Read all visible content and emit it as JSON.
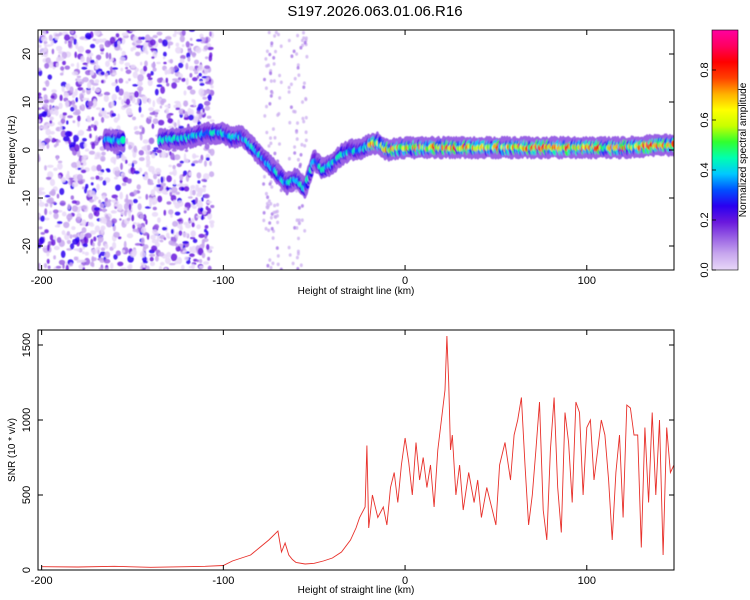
{
  "title": "S197.2026.063.01.06.R16",
  "chart_data": [
    {
      "type": "heatmap",
      "xlabel": "Height of straight line (km)",
      "ylabel": "Frequency (Hz)",
      "xlim": [
        -202,
        148
      ],
      "ylim": [
        -25,
        25
      ],
      "xticks": [
        -200,
        -100,
        0,
        100
      ],
      "yticks": [
        -20,
        -10,
        0,
        10,
        20
      ],
      "colorbar": {
        "label": "Normalized spectral amplitude",
        "range": [
          0,
          0.96
        ],
        "ticks": [
          "0.0",
          "0.2",
          "0.4",
          "0.6",
          "0.8"
        ],
        "colors": [
          "#e8d8f8",
          "#c8a8ee",
          "#9a62e4",
          "#6a18dd",
          "#2a00f0",
          "#0050ff",
          "#00c8ff",
          "#00ffb0",
          "#30ff30",
          "#c8ff00",
          "#ffff00",
          "#ffb000",
          "#ff4000",
          "#ff0000",
          "#ff0060",
          "#ff00a0"
        ]
      },
      "ridge": {
        "x": [
          -200,
          -170,
          -160,
          -150,
          -140,
          -120,
          -110,
          -100,
          -95,
          -90,
          -85,
          -80,
          -75,
          -70,
          -65,
          -60,
          -55,
          -50,
          -45,
          -40,
          -35,
          -30,
          -25,
          -20,
          -15,
          -10,
          0,
          10,
          20,
          30,
          50,
          70,
          100,
          120,
          140,
          148
        ],
        "freq": [
          2,
          2,
          2,
          2,
          2,
          2.5,
          3.5,
          3.5,
          2.5,
          3,
          1,
          -1,
          -3,
          -5,
          -7,
          -6,
          -8,
          -2,
          -4,
          -3,
          -1,
          0,
          0,
          1,
          1.5,
          0,
          0.5,
          0.5,
          0.5,
          0.5,
          0.5,
          0.5,
          0.5,
          0.5,
          1,
          1
        ]
      }
    },
    {
      "type": "line",
      "xlabel": "Height of straight line (km)",
      "ylabel": "SNR (10 * v/v)",
      "xlim": [
        -202,
        148
      ],
      "ylim": [
        0,
        1600
      ],
      "xticks": [
        -200,
        -100,
        0,
        100
      ],
      "yticks": [
        0,
        500,
        1000,
        1500
      ],
      "color": "#e8302a",
      "series": [
        {
          "name": "SNR",
          "x": [
            -200,
            -180,
            -160,
            -140,
            -120,
            -110,
            -100,
            -95,
            -90,
            -85,
            -80,
            -75,
            -70,
            -68,
            -66,
            -64,
            -62,
            -60,
            -55,
            -50,
            -45,
            -40,
            -35,
            -30,
            -27,
            -25,
            -22,
            -21,
            -20,
            -18,
            -15,
            -12,
            -10,
            -8,
            -6,
            -4,
            -2,
            0,
            2,
            4,
            6,
            8,
            10,
            12,
            14,
            16,
            18,
            20,
            22,
            23,
            24,
            25,
            26,
            28,
            30,
            32,
            35,
            38,
            40,
            42,
            45,
            48,
            50,
            52,
            55,
            58,
            60,
            62,
            64,
            66,
            68,
            70,
            72,
            74,
            76,
            78,
            80,
            82,
            84,
            86,
            88,
            90,
            92,
            94,
            96,
            98,
            100,
            102,
            104,
            106,
            108,
            110,
            112,
            114,
            116,
            118,
            120,
            122,
            124,
            126,
            128,
            130,
            132,
            134,
            136,
            138,
            140,
            142,
            144,
            146,
            148
          ],
          "values": [
            22,
            20,
            25,
            18,
            22,
            25,
            30,
            60,
            80,
            100,
            150,
            200,
            260,
            120,
            180,
            100,
            70,
            50,
            40,
            45,
            60,
            80,
            120,
            200,
            280,
            350,
            420,
            830,
            280,
            500,
            350,
            420,
            300,
            550,
            650,
            450,
            700,
            880,
            720,
            500,
            850,
            600,
            750,
            550,
            700,
            420,
            800,
            1000,
            1200,
            1560,
            1250,
            800,
            900,
            500,
            700,
            400,
            650,
            450,
            600,
            350,
            550,
            400,
            300,
            700,
            850,
            600,
            900,
            1000,
            1150,
            700,
            300,
            500,
            800,
            1120,
            400,
            200,
            800,
            1150,
            550,
            250,
            1050,
            850,
            450,
            1120,
            1050,
            500,
            950,
            1000,
            600,
            800,
            1000,
            900,
            600,
            200,
            650,
            900,
            350,
            1100,
            1080,
            900,
            900,
            150,
            950,
            450,
            1050,
            500,
            1000,
            100,
            950,
            650,
            700
          ]
        }
      ]
    }
  ]
}
